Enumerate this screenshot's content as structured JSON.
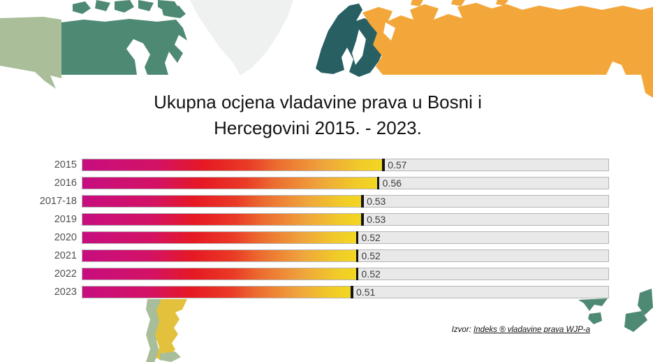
{
  "slide": {
    "title": "Ukupna ocjena vladavine prava u Bosni i Hercegovini 2015. - 2023.",
    "source_prefix": "Izvor: ",
    "source_link": "Indeks ® vladavine prava WJP-a"
  },
  "chart_data": {
    "type": "bar",
    "orientation": "horizontal",
    "title": "Ukupna ocjena vladavine prava u Bosni i Hercegovini 2015. - 2023.",
    "categories": [
      "2015",
      "2016",
      "2017-18",
      "2019",
      "2020",
      "2021",
      "2022",
      "2023"
    ],
    "values": [
      0.57,
      0.56,
      0.53,
      0.53,
      0.52,
      0.52,
      0.52,
      0.51
    ],
    "value_labels": [
      "0.57",
      "0.56",
      "0.53",
      "0.53",
      "0.52",
      "0.52",
      "0.52",
      "0.51"
    ],
    "xlim": [
      0,
      1
    ],
    "grid": false,
    "legend": false,
    "track_color": "#e9e9e9",
    "track_border_color": "#b5b5b5",
    "marker_color": "#141414",
    "category_label_color": "#505050",
    "value_label_color": "#3a3a3a",
    "gradient_stops": [
      {
        "color": "#c70e7f",
        "pos": 0
      },
      {
        "color": "#d31265",
        "pos": 25
      },
      {
        "color": "#e61824",
        "pos": 40
      },
      {
        "color": "#ea3a26",
        "pos": 55
      },
      {
        "color": "#ec6c30",
        "pos": 65
      },
      {
        "color": "#efa33c",
        "pos": 80
      },
      {
        "color": "#f1cb28",
        "pos": 93
      },
      {
        "color": "#f2d722",
        "pos": 100
      }
    ]
  },
  "map": {
    "colors": {
      "ocean": "#ffffff",
      "canada_teal": "#4e8a73",
      "alaska_sage": "#a9be99",
      "greenland_gray": "#eff1f1",
      "iceland_gray": "#eff1f1",
      "scandinavia_teal": "#275f63",
      "russia_orange": "#f3a73b",
      "argentina_yellow": "#e3c13d",
      "chile_sage": "#a8bd99",
      "oceania_teal": "#4e8a73"
    }
  }
}
